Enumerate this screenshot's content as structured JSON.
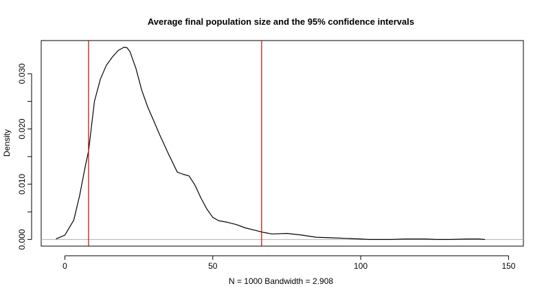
{
  "chart_data": {
    "type": "line",
    "title": "Average final population size and the 95% confidence intervals",
    "xlabel": "N = 1000   Bandwidth = 2.908",
    "ylabel": "Density",
    "xlim": [
      -8,
      155
    ],
    "ylim": [
      -0.0012,
      0.036
    ],
    "x_ticks": [
      0,
      50,
      100,
      150
    ],
    "x_tick_labels": [
      "0",
      "50",
      "100",
      "150"
    ],
    "y_ticks": [
      0.0,
      0.005,
      0.01,
      0.015,
      0.02,
      0.025,
      0.03
    ],
    "y_tick_labels": [
      "0.000",
      "",
      "0.010",
      "",
      "0.020",
      "",
      "0.030"
    ],
    "grid": false,
    "baseline": 0,
    "series": [
      {
        "color": "#000000",
        "x": [
          -3,
          0,
          3,
          5,
          7,
          8,
          10,
          12,
          14,
          16,
          18,
          20,
          21,
          22,
          24,
          26,
          28,
          30,
          32,
          35,
          38,
          40,
          42,
          44,
          46,
          48,
          50,
          52,
          55,
          58,
          61,
          64,
          67,
          70,
          75,
          80,
          85,
          90,
          95,
          100,
          103,
          106,
          110,
          115,
          118,
          122,
          126,
          130,
          136,
          140,
          142
        ],
        "y": [
          0.0001,
          0.0008,
          0.0035,
          0.008,
          0.0135,
          0.016,
          0.025,
          0.029,
          0.0315,
          0.033,
          0.0342,
          0.0348,
          0.0347,
          0.034,
          0.031,
          0.027,
          0.024,
          0.0215,
          0.019,
          0.0155,
          0.0122,
          0.0118,
          0.0115,
          0.0098,
          0.0075,
          0.0055,
          0.004,
          0.0034,
          0.0031,
          0.0027,
          0.0021,
          0.0017,
          0.0013,
          0.001,
          0.0011,
          0.0008,
          0.0004,
          0.0003,
          0.0002,
          0.0001,
          0.0,
          0.0,
          0.0,
          0.0001,
          0.0001,
          0.0001,
          0.0,
          0.0,
          0.0001,
          0.0001,
          0.0
        ]
      }
    ],
    "vlines": [
      {
        "x": 8.0,
        "color": "#cc0000"
      },
      {
        "x": 66.5,
        "color": "#cc0000"
      }
    ]
  }
}
